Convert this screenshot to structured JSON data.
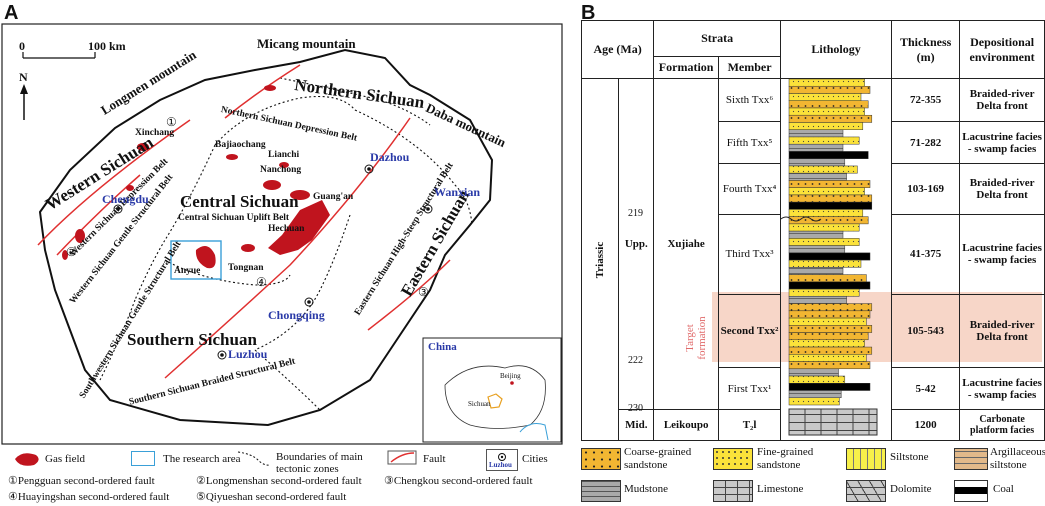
{
  "panels": {
    "a": "A",
    "b": "B"
  },
  "map": {
    "scale": {
      "zero": "0",
      "end": "100 km"
    },
    "north": "N",
    "mountains": [
      "Micang mountain",
      "Longmen mountain",
      "Daba mountain"
    ],
    "regions": {
      "northern": "Northern Sichuan",
      "western": "Western Sichuan",
      "central": "Central Sichuan",
      "eastern": "Eastern Sichuan",
      "southern": "Southern Sichuan"
    },
    "belts": {
      "north_depression": "Northern Sichuan Depression Belt",
      "central_uplift": "Central Sichuan Uplift Belt",
      "west_depression": "Western Sichuan Depression Belt",
      "west_gentle": "Western Sichuan Gentle Structural Belt",
      "east_steep": "Eastern Sichuan High-Steep Structural Belt",
      "southwest_gentle": "Southwestern Sichuan Gentle Structural Belt",
      "south_braided": "Southern Sichuan Braided Structural Belt"
    },
    "cities": [
      "Chengdu",
      "Dazhou",
      "Wanxian",
      "Chongqing",
      "Luzhou"
    ],
    "gas_fields": [
      "Xinchang",
      "Bajiaochang",
      "Lianchi",
      "Nanchong",
      "Guang'an",
      "Hechuan",
      "Anyue",
      "Tongnan"
    ],
    "fault_numbers": [
      "①",
      "②",
      "③",
      "④",
      "⑤"
    ],
    "inset": {
      "title": "China",
      "beijing": "Beijing",
      "sichuan": "Sichuan"
    }
  },
  "map_legend": {
    "gas_field": "Gas field",
    "research_area": "The research area",
    "boundaries": "Boundaries of main tectonic zones",
    "fault": "Fault",
    "cities": "Cities",
    "city_sample": "Luzhou",
    "faults_list": [
      "①Pengguan second-ordered fault",
      "②Longmenshan second-ordered fault",
      "③Chengkou second-ordered fault",
      "④Huayingshan second-ordered fault",
      "⑤Qiyueshan second-ordered fault"
    ]
  },
  "strat": {
    "headers": {
      "age": "Age (Ma)",
      "strata": "Strata",
      "formation": "Formation",
      "member": "Member",
      "lithology": "Lithology",
      "thickness": "Thickness (m)",
      "environment": "Depositional environment"
    },
    "system": "Triassic",
    "series_upp": "Upp.",
    "series_mid": "Mid.",
    "ages": [
      "219",
      "222",
      "230"
    ],
    "formation_upper": "Xujiahe",
    "formation_lower": "Leikoupo",
    "target_label": "Target formation",
    "members": [
      {
        "name": "Sixth",
        "code": "Txx⁶",
        "thickness": "72-355",
        "env": "Braided-river Delta front"
      },
      {
        "name": "Fifth",
        "code": "Txx⁵",
        "thickness": "71-282",
        "env": "Lacustrine facies - swamp facies"
      },
      {
        "name": "Fourth",
        "code": "Txx⁴",
        "thickness": "103-169",
        "env": "Braided-river Delta front"
      },
      {
        "name": "Third",
        "code": "Txx³",
        "thickness": "41-375",
        "env": "Lacustrine facies - swamp facies"
      },
      {
        "name": "Second",
        "code": "Txx²",
        "thickness": "105-543",
        "env": "Braided-river Delta front"
      },
      {
        "name": "First",
        "code": "Txx¹",
        "thickness": "5-42",
        "env": "Lacustrine facies - swamp facies"
      }
    ],
    "leikoupo": {
      "code": "T₂l",
      "thickness": "1200",
      "env": "Carbonate platform facies"
    }
  },
  "lith_legend": [
    {
      "key": "coarse",
      "label": "Coarse-grained sandstone"
    },
    {
      "key": "fine",
      "label": "Fine-grained sandstone"
    },
    {
      "key": "silt",
      "label": "Siltstone"
    },
    {
      "key": "arg",
      "label": "Argillaceous siltstone"
    },
    {
      "key": "mud",
      "label": "Mudstone"
    },
    {
      "key": "lime",
      "label": "Limestone"
    },
    {
      "key": "dolo",
      "label": "Dolomite"
    },
    {
      "key": "coal",
      "label": "Coal"
    }
  ],
  "colors": {
    "gas_field": "#c0141e",
    "fault": "#e03030",
    "city": "#2a3aa8",
    "research_box": "#3aa0d8",
    "target_band": "#f7d6c8",
    "target_text": "#e06a6a",
    "coarse": "#f2b632",
    "fine": "#fbe23a"
  }
}
